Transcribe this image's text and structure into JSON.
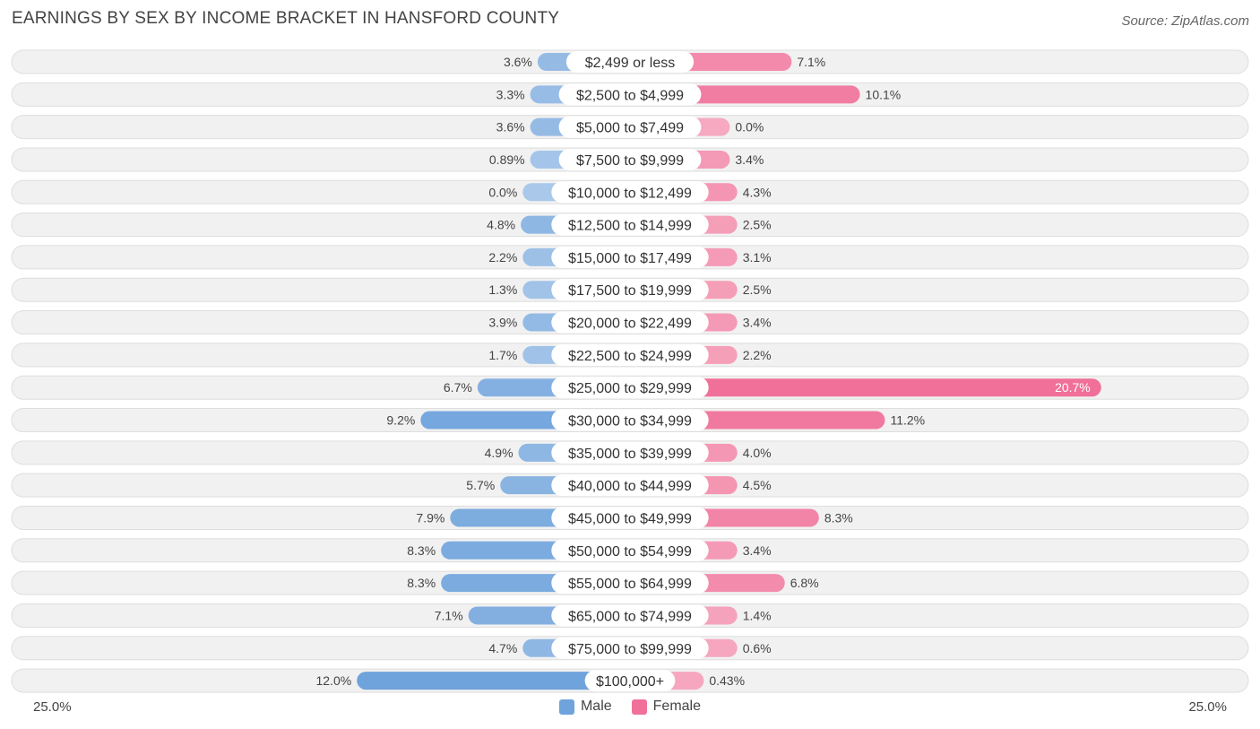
{
  "title": "EARNINGS BY SEX BY INCOME BRACKET IN HANSFORD COUNTY",
  "source": "Source: ZipAtlas.com",
  "axis": {
    "left_label": "25.0%",
    "right_label": "25.0%"
  },
  "legend": [
    {
      "name": "Male",
      "color": "#6fa3dc"
    },
    {
      "name": "Female",
      "color": "#f07099"
    }
  ],
  "colors": {
    "male_strong": "#6fa3dc",
    "male_light": "#a9c8ea",
    "female_strong": "#f07099",
    "female_light": "#f6a9c0",
    "row_bg": "#f1f1f1",
    "row_border": "#dedede"
  },
  "chart_data": {
    "type": "bar",
    "orientation": "horizontal-diverging",
    "title": "EARNINGS BY SEX BY INCOME BRACKET IN HANSFORD COUNTY",
    "xlim": [
      -25,
      25
    ],
    "categories": [
      "$2,499 or less",
      "$2,500 to $4,999",
      "$5,000 to $7,499",
      "$7,500 to $9,999",
      "$10,000 to $12,499",
      "$12,500 to $14,999",
      "$15,000 to $17,499",
      "$17,500 to $19,999",
      "$20,000 to $22,499",
      "$22,500 to $24,999",
      "$25,000 to $29,999",
      "$30,000 to $34,999",
      "$35,000 to $39,999",
      "$40,000 to $44,999",
      "$45,000 to $49,999",
      "$50,000 to $54,999",
      "$55,000 to $64,999",
      "$65,000 to $74,999",
      "$75,000 to $99,999",
      "$100,000+"
    ],
    "series": [
      {
        "name": "Male",
        "values": [
          3.6,
          3.3,
          3.6,
          0.89,
          0.0,
          4.8,
          2.2,
          1.3,
          3.9,
          1.7,
          6.7,
          9.2,
          4.9,
          5.7,
          7.9,
          8.3,
          8.3,
          7.1,
          4.7,
          12.0
        ],
        "labels": [
          "3.6%",
          "3.3%",
          "3.6%",
          "0.89%",
          "0.0%",
          "4.8%",
          "2.2%",
          "1.3%",
          "3.9%",
          "1.7%",
          "6.7%",
          "9.2%",
          "4.9%",
          "5.7%",
          "7.9%",
          "8.3%",
          "8.3%",
          "7.1%",
          "4.7%",
          "12.0%"
        ]
      },
      {
        "name": "Female",
        "values": [
          7.1,
          10.1,
          0.0,
          3.4,
          4.3,
          2.5,
          3.1,
          2.5,
          3.4,
          2.2,
          20.7,
          11.2,
          4.0,
          4.5,
          8.3,
          3.4,
          6.8,
          1.4,
          0.6,
          0.43
        ],
        "labels": [
          "7.1%",
          "10.1%",
          "0.0%",
          "3.4%",
          "4.3%",
          "2.5%",
          "3.1%",
          "2.5%",
          "3.4%",
          "2.2%",
          "20.7%",
          "11.2%",
          "4.0%",
          "4.5%",
          "8.3%",
          "3.4%",
          "6.8%",
          "1.4%",
          "0.6%",
          "0.43%"
        ]
      }
    ]
  }
}
